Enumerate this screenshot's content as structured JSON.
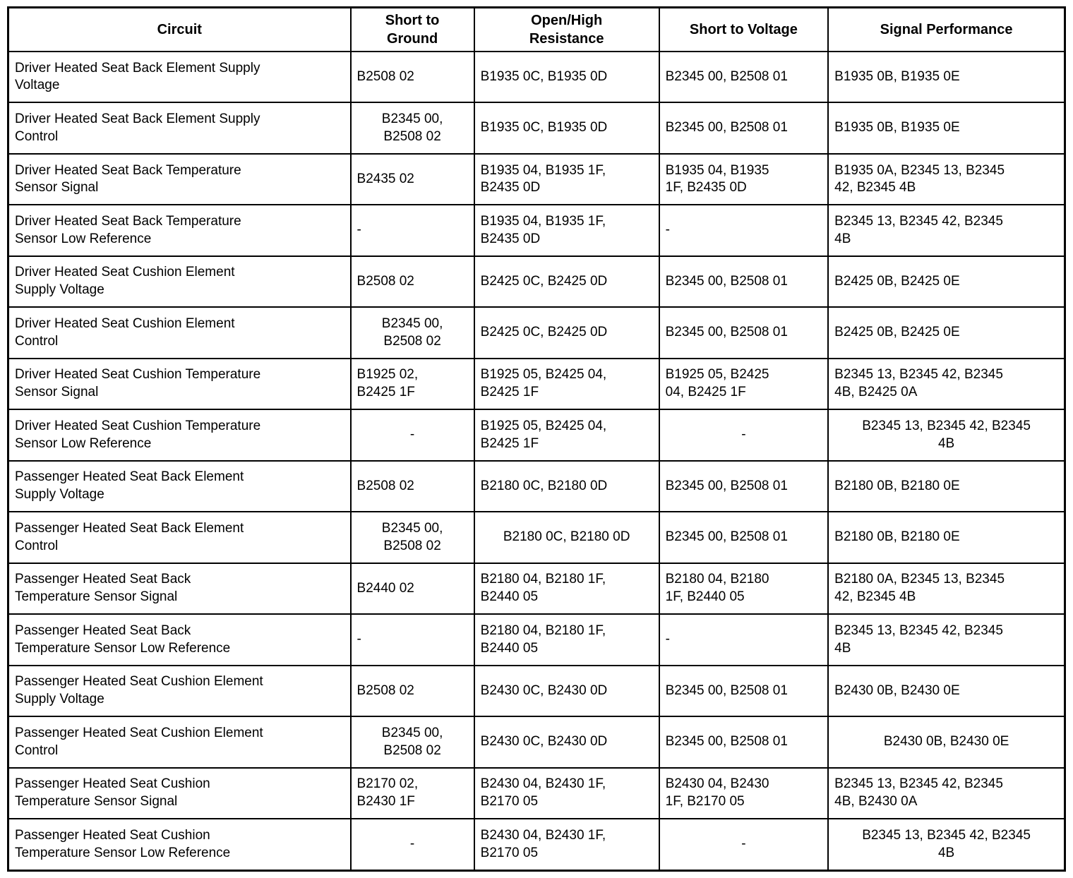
{
  "table": {
    "columns": [
      {
        "key": "circuit",
        "label": "Circuit"
      },
      {
        "key": "short-to-ground",
        "label": "Short to\nGround"
      },
      {
        "key": "open-high-resistance",
        "label": "Open/High\nResistance"
      },
      {
        "key": "short-to-voltage",
        "label": "Short to Voltage"
      },
      {
        "key": "signal-performance",
        "label": "Signal Performance"
      }
    ],
    "rows": [
      {
        "cells": [
          {
            "text": "Driver Heated Seat Back Element Supply\nVoltage",
            "align": "left"
          },
          {
            "text": "B2508 02",
            "align": "left"
          },
          {
            "text": "B1935 0C, B1935 0D",
            "align": "left"
          },
          {
            "text": "B2345 00, B2508 01",
            "align": "left"
          },
          {
            "text": "B1935 0B, B1935 0E",
            "align": "left"
          }
        ]
      },
      {
        "cells": [
          {
            "text": "Driver Heated Seat Back Element Supply\nControl",
            "align": "left"
          },
          {
            "text": "B2345 00,\nB2508 02",
            "align": "center"
          },
          {
            "text": "B1935 0C, B1935 0D",
            "align": "left"
          },
          {
            "text": "B2345 00, B2508 01",
            "align": "left"
          },
          {
            "text": "B1935 0B, B1935 0E",
            "align": "left"
          }
        ]
      },
      {
        "cells": [
          {
            "text": "Driver Heated Seat Back Temperature\nSensor Signal",
            "align": "left"
          },
          {
            "text": "B2435 02",
            "align": "left"
          },
          {
            "text": "B1935 04, B1935 1F,\nB2435 0D",
            "align": "left"
          },
          {
            "text": "B1935 04, B1935\n1F, B2435 0D",
            "align": "left"
          },
          {
            "text": "B1935 0A, B2345 13, B2345\n42, B2345 4B",
            "align": "left"
          }
        ]
      },
      {
        "cells": [
          {
            "text": "Driver Heated Seat Back Temperature\nSensor Low Reference",
            "align": "left"
          },
          {
            "text": "-",
            "align": "left"
          },
          {
            "text": "B1935 04, B1935 1F,\nB2435 0D",
            "align": "left"
          },
          {
            "text": "-",
            "align": "left"
          },
          {
            "text": "B2345 13, B2345 42, B2345\n4B",
            "align": "left"
          }
        ]
      },
      {
        "cells": [
          {
            "text": "Driver Heated Seat Cushion Element\nSupply Voltage",
            "align": "left"
          },
          {
            "text": "B2508 02",
            "align": "left"
          },
          {
            "text": "B2425 0C, B2425 0D",
            "align": "left"
          },
          {
            "text": "B2345 00, B2508 01",
            "align": "left"
          },
          {
            "text": "B2425 0B, B2425 0E",
            "align": "left"
          }
        ]
      },
      {
        "cells": [
          {
            "text": "Driver Heated Seat Cushion Element\nControl",
            "align": "left"
          },
          {
            "text": "B2345 00,\nB2508 02",
            "align": "center"
          },
          {
            "text": "B2425 0C, B2425 0D",
            "align": "left"
          },
          {
            "text": "B2345 00, B2508 01",
            "align": "left"
          },
          {
            "text": "B2425 0B, B2425 0E",
            "align": "left"
          }
        ]
      },
      {
        "cells": [
          {
            "text": "Driver Heated Seat Cushion Temperature\nSensor Signal",
            "align": "left"
          },
          {
            "text": "B1925 02,\nB2425 1F",
            "align": "left"
          },
          {
            "text": "B1925 05, B2425 04,\nB2425 1F",
            "align": "left"
          },
          {
            "text": "B1925 05, B2425\n04, B2425 1F",
            "align": "left"
          },
          {
            "text": "B2345 13, B2345 42, B2345\n4B, B2425 0A",
            "align": "left"
          }
        ]
      },
      {
        "cells": [
          {
            "text": "Driver Heated Seat Cushion Temperature\nSensor Low Reference",
            "align": "left"
          },
          {
            "text": "-",
            "align": "center"
          },
          {
            "text": "B1925 05, B2425 04,\nB2425 1F",
            "align": "left"
          },
          {
            "text": "-",
            "align": "center"
          },
          {
            "text": "B2345 13, B2345 42, B2345\n4B",
            "align": "center"
          }
        ]
      },
      {
        "cells": [
          {
            "text": "Passenger Heated Seat Back Element\nSupply Voltage",
            "align": "left"
          },
          {
            "text": "B2508 02",
            "align": "left"
          },
          {
            "text": "B2180 0C, B2180 0D",
            "align": "left"
          },
          {
            "text": "B2345 00, B2508 01",
            "align": "left"
          },
          {
            "text": "B2180 0B, B2180 0E",
            "align": "left"
          }
        ]
      },
      {
        "cells": [
          {
            "text": "Passenger Heated Seat Back Element\nControl",
            "align": "left"
          },
          {
            "text": "B2345 00,\nB2508 02",
            "align": "center"
          },
          {
            "text": "B2180 0C, B2180 0D",
            "align": "center"
          },
          {
            "text": "B2345 00, B2508 01",
            "align": "left"
          },
          {
            "text": "B2180 0B, B2180 0E",
            "align": "left"
          }
        ]
      },
      {
        "cells": [
          {
            "text": "Passenger Heated Seat Back\nTemperature Sensor Signal",
            "align": "left"
          },
          {
            "text": "B2440 02",
            "align": "left"
          },
          {
            "text": "B2180 04, B2180 1F,\nB2440 05",
            "align": "left"
          },
          {
            "text": "B2180 04, B2180\n1F, B2440 05",
            "align": "left"
          },
          {
            "text": "B2180 0A, B2345 13, B2345\n42, B2345 4B",
            "align": "left"
          }
        ]
      },
      {
        "cells": [
          {
            "text": "Passenger Heated Seat Back\nTemperature Sensor Low Reference",
            "align": "left"
          },
          {
            "text": "-",
            "align": "left"
          },
          {
            "text": "B2180 04, B2180 1F,\nB2440 05",
            "align": "left"
          },
          {
            "text": "-",
            "align": "left"
          },
          {
            "text": "B2345 13, B2345 42, B2345\n4B",
            "align": "left"
          }
        ]
      },
      {
        "cells": [
          {
            "text": "Passenger Heated Seat Cushion Element\nSupply Voltage",
            "align": "left"
          },
          {
            "text": "B2508 02",
            "align": "left"
          },
          {
            "text": "B2430 0C, B2430 0D",
            "align": "left"
          },
          {
            "text": "B2345 00, B2508 01",
            "align": "left"
          },
          {
            "text": "B2430 0B, B2430 0E",
            "align": "left"
          }
        ]
      },
      {
        "cells": [
          {
            "text": "Passenger Heated Seat Cushion Element\nControl",
            "align": "left"
          },
          {
            "text": "B2345 00,\nB2508 02",
            "align": "center"
          },
          {
            "text": "B2430 0C, B2430 0D",
            "align": "left"
          },
          {
            "text": "B2345 00, B2508 01",
            "align": "left"
          },
          {
            "text": "B2430 0B, B2430 0E",
            "align": "center"
          }
        ]
      },
      {
        "cells": [
          {
            "text": "Passenger Heated Seat Cushion\nTemperature Sensor Signal",
            "align": "left"
          },
          {
            "text": "B2170 02,\nB2430 1F",
            "align": "left"
          },
          {
            "text": "B2430 04, B2430 1F,\nB2170 05",
            "align": "left"
          },
          {
            "text": "B2430 04, B2430\n1F, B2170 05",
            "align": "left"
          },
          {
            "text": "B2345 13, B2345 42, B2345\n4B, B2430 0A",
            "align": "left"
          }
        ]
      },
      {
        "cells": [
          {
            "text": "Passenger Heated Seat Cushion\nTemperature Sensor Low Reference",
            "align": "left"
          },
          {
            "text": "-",
            "align": "center"
          },
          {
            "text": "B2430 04, B2430 1F,\nB2170 05",
            "align": "left"
          },
          {
            "text": "-",
            "align": "center"
          },
          {
            "text": "B2345 13, B2345 42, B2345\n4B",
            "align": "center"
          }
        ]
      }
    ]
  }
}
